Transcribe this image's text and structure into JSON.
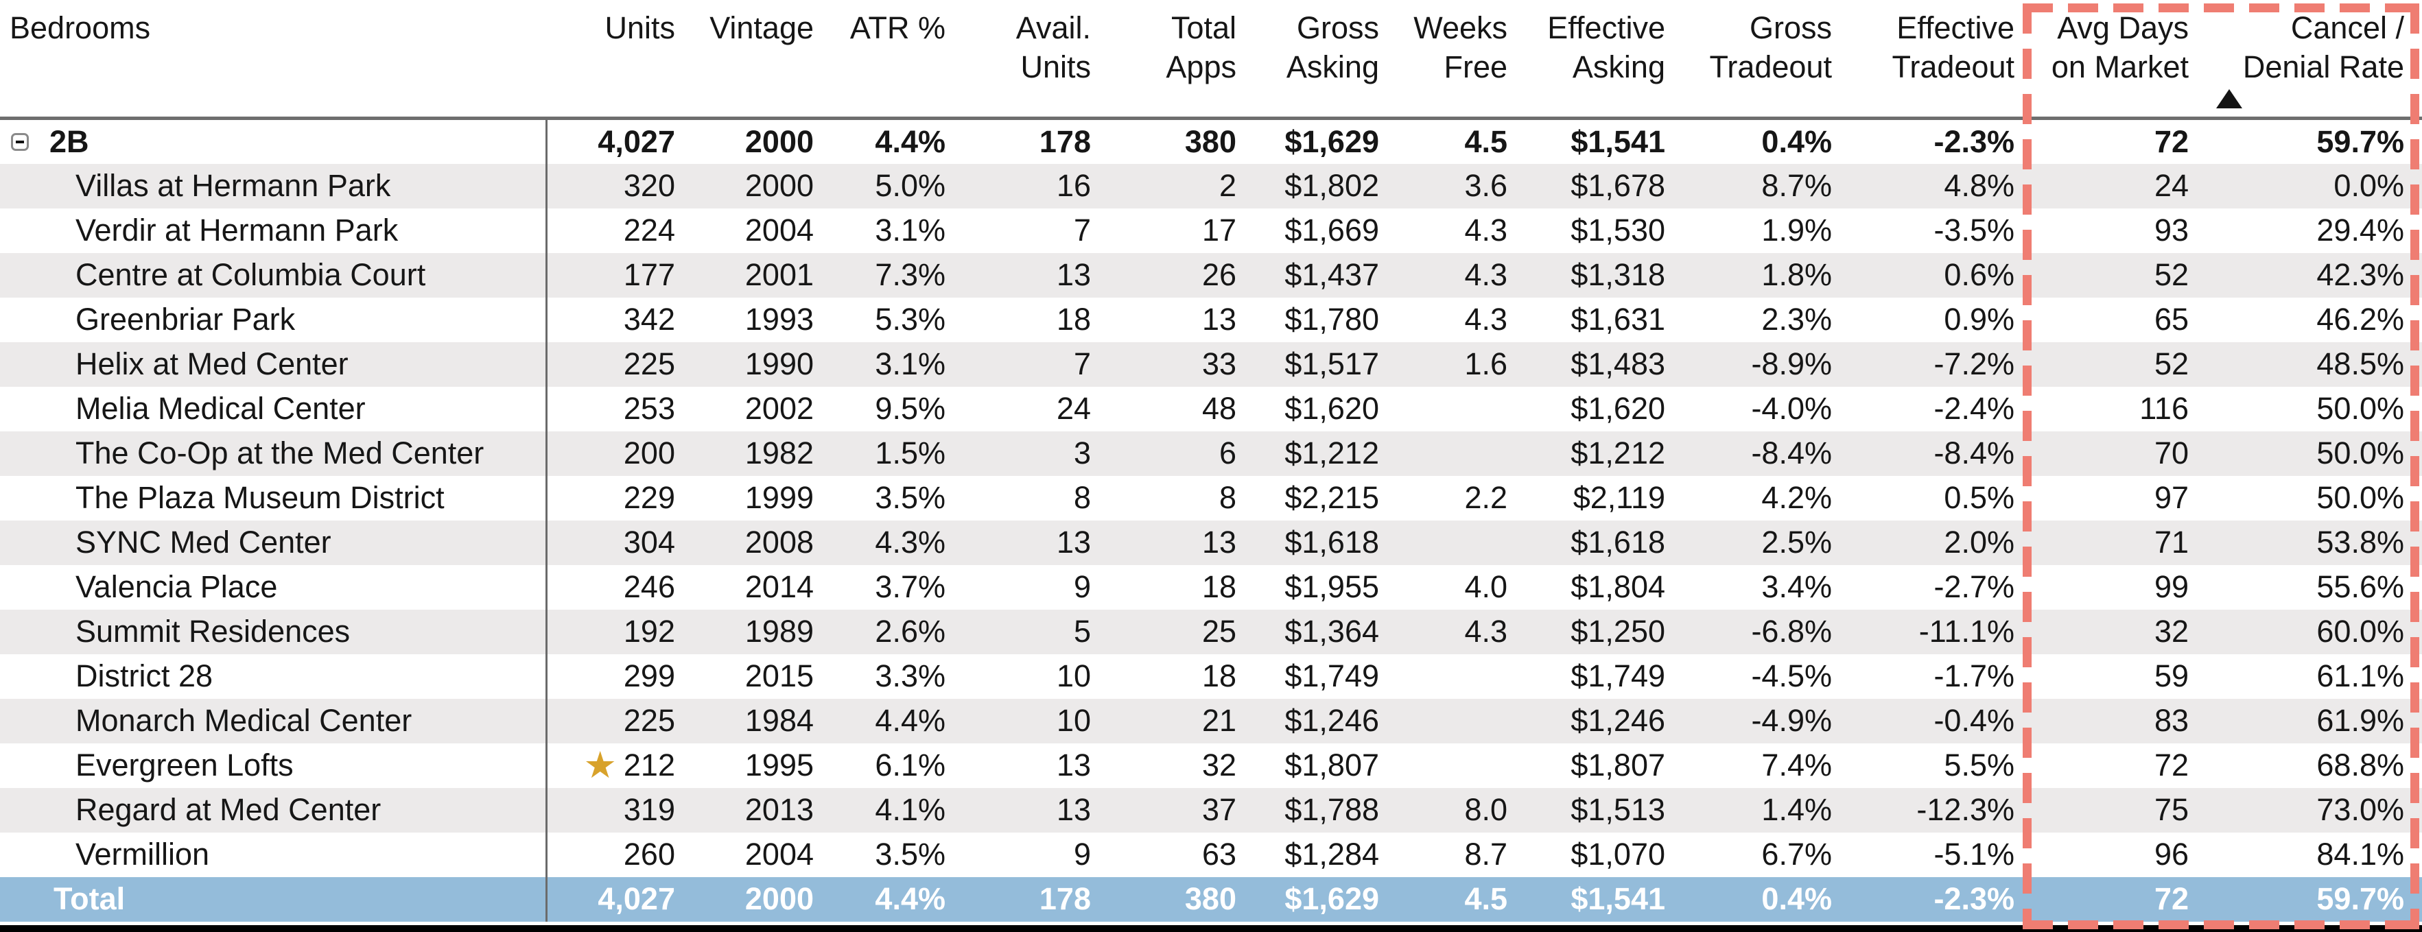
{
  "colors": {
    "row_alt": "#ECEAEA",
    "total_bg": "#94BCDA",
    "total_text": "#FFFFFF",
    "highlight_dash": "#EF7D72",
    "star": "#D8A22B",
    "header_line": "#6E6E6E",
    "divider": "#6B6B6B",
    "text": "#161616",
    "bottom_bar": "#000000"
  },
  "icons": {
    "collapse": "minus-box-icon",
    "favorite": "star-icon",
    "sort": "triangle-up-icon"
  },
  "header": {
    "sorted_column": "cancel_rate",
    "sort_direction": "ascending",
    "sort_indicator": "triangle-up",
    "columns": [
      {
        "id": "bedrooms",
        "line1": "Bedrooms",
        "line2": ""
      },
      {
        "id": "units",
        "line1": "Units",
        "line2": ""
      },
      {
        "id": "vintage",
        "line1": "Vintage",
        "line2": ""
      },
      {
        "id": "atr",
        "line1": "ATR %",
        "line2": ""
      },
      {
        "id": "avail_units",
        "line1": "Avail.",
        "line2": "Units"
      },
      {
        "id": "total_apps",
        "line1": "Total",
        "line2": "Apps"
      },
      {
        "id": "gross_asking",
        "line1": "Gross",
        "line2": "Asking"
      },
      {
        "id": "weeks_free",
        "line1": "Weeks",
        "line2": "Free"
      },
      {
        "id": "effective_asking",
        "line1": "Effective",
        "line2": "Asking"
      },
      {
        "id": "gross_tradeout",
        "line1": "Gross",
        "line2": "Tradeout"
      },
      {
        "id": "effective_tradeout",
        "line1": "Effective",
        "line2": "Tradeout"
      },
      {
        "id": "avg_days",
        "line1": "Avg Days",
        "line2": "on Market"
      },
      {
        "id": "cancel_rate",
        "line1": "Cancel /",
        "line2": "Denial Rate"
      }
    ]
  },
  "table": {
    "field_order": [
      "units",
      "vintage",
      "atr",
      "avail_units",
      "total_apps",
      "gross_asking",
      "weeks_free",
      "effective_asking",
      "gross_tradeout",
      "effective_tradeout",
      "avg_days",
      "cancel_rate"
    ],
    "group_row": {
      "label": "2B",
      "collapsed": false,
      "units": "4,027",
      "vintage": "2000",
      "atr": "4.4%",
      "avail_units": "178",
      "total_apps": "380",
      "gross_asking": "$1,629",
      "weeks_free": "4.5",
      "effective_asking": "$1,541",
      "gross_tradeout": "0.4%",
      "effective_tradeout": "-2.3%",
      "avg_days": "72",
      "cancel_rate": "59.7%"
    },
    "rows": [
      {
        "name": "Villas at Hermann Park",
        "starred": false,
        "units": "320",
        "vintage": "2000",
        "atr": "5.0%",
        "avail_units": "16",
        "total_apps": "2",
        "gross_asking": "$1,802",
        "weeks_free": "3.6",
        "effective_asking": "$1,678",
        "gross_tradeout": "8.7%",
        "effective_tradeout": "4.8%",
        "avg_days": "24",
        "cancel_rate": "0.0%"
      },
      {
        "name": "Verdir at Hermann Park",
        "starred": false,
        "units": "224",
        "vintage": "2004",
        "atr": "3.1%",
        "avail_units": "7",
        "total_apps": "17",
        "gross_asking": "$1,669",
        "weeks_free": "4.3",
        "effective_asking": "$1,530",
        "gross_tradeout": "1.9%",
        "effective_tradeout": "-3.5%",
        "avg_days": "93",
        "cancel_rate": "29.4%"
      },
      {
        "name": "Centre at Columbia Court",
        "starred": false,
        "units": "177",
        "vintage": "2001",
        "atr": "7.3%",
        "avail_units": "13",
        "total_apps": "26",
        "gross_asking": "$1,437",
        "weeks_free": "4.3",
        "effective_asking": "$1,318",
        "gross_tradeout": "1.8%",
        "effective_tradeout": "0.6%",
        "avg_days": "52",
        "cancel_rate": "42.3%"
      },
      {
        "name": "Greenbriar Park",
        "starred": false,
        "units": "342",
        "vintage": "1993",
        "atr": "5.3%",
        "avail_units": "18",
        "total_apps": "13",
        "gross_asking": "$1,780",
        "weeks_free": "4.3",
        "effective_asking": "$1,631",
        "gross_tradeout": "2.3%",
        "effective_tradeout": "0.9%",
        "avg_days": "65",
        "cancel_rate": "46.2%"
      },
      {
        "name": "Helix at Med Center",
        "starred": false,
        "units": "225",
        "vintage": "1990",
        "atr": "3.1%",
        "avail_units": "7",
        "total_apps": "33",
        "gross_asking": "$1,517",
        "weeks_free": "1.6",
        "effective_asking": "$1,483",
        "gross_tradeout": "-8.9%",
        "effective_tradeout": "-7.2%",
        "avg_days": "52",
        "cancel_rate": "48.5%"
      },
      {
        "name": "Melia Medical Center",
        "starred": false,
        "units": "253",
        "vintage": "2002",
        "atr": "9.5%",
        "avail_units": "24",
        "total_apps": "48",
        "gross_asking": "$1,620",
        "weeks_free": "",
        "effective_asking": "$1,620",
        "gross_tradeout": "-4.0%",
        "effective_tradeout": "-2.4%",
        "avg_days": "116",
        "cancel_rate": "50.0%"
      },
      {
        "name": "The Co-Op at the Med Center",
        "starred": false,
        "units": "200",
        "vintage": "1982",
        "atr": "1.5%",
        "avail_units": "3",
        "total_apps": "6",
        "gross_asking": "$1,212",
        "weeks_free": "",
        "effective_asking": "$1,212",
        "gross_tradeout": "-8.4%",
        "effective_tradeout": "-8.4%",
        "avg_days": "70",
        "cancel_rate": "50.0%"
      },
      {
        "name": "The Plaza Museum District",
        "starred": false,
        "units": "229",
        "vintage": "1999",
        "atr": "3.5%",
        "avail_units": "8",
        "total_apps": "8",
        "gross_asking": "$2,215",
        "weeks_free": "2.2",
        "effective_asking": "$2,119",
        "gross_tradeout": "4.2%",
        "effective_tradeout": "0.5%",
        "avg_days": "97",
        "cancel_rate": "50.0%"
      },
      {
        "name": "SYNC Med Center",
        "starred": false,
        "units": "304",
        "vintage": "2008",
        "atr": "4.3%",
        "avail_units": "13",
        "total_apps": "13",
        "gross_asking": "$1,618",
        "weeks_free": "",
        "effective_asking": "$1,618",
        "gross_tradeout": "2.5%",
        "effective_tradeout": "2.0%",
        "avg_days": "71",
        "cancel_rate": "53.8%"
      },
      {
        "name": "Valencia Place",
        "starred": false,
        "units": "246",
        "vintage": "2014",
        "atr": "3.7%",
        "avail_units": "9",
        "total_apps": "18",
        "gross_asking": "$1,955",
        "weeks_free": "4.0",
        "effective_asking": "$1,804",
        "gross_tradeout": "3.4%",
        "effective_tradeout": "-2.7%",
        "avg_days": "99",
        "cancel_rate": "55.6%"
      },
      {
        "name": "Summit Residences",
        "starred": false,
        "units": "192",
        "vintage": "1989",
        "atr": "2.6%",
        "avail_units": "5",
        "total_apps": "25",
        "gross_asking": "$1,364",
        "weeks_free": "4.3",
        "effective_asking": "$1,250",
        "gross_tradeout": "-6.8%",
        "effective_tradeout": "-11.1%",
        "avg_days": "32",
        "cancel_rate": "60.0%"
      },
      {
        "name": "District 28",
        "starred": false,
        "units": "299",
        "vintage": "2015",
        "atr": "3.3%",
        "avail_units": "10",
        "total_apps": "18",
        "gross_asking": "$1,749",
        "weeks_free": "",
        "effective_asking": "$1,749",
        "gross_tradeout": "-4.5%",
        "effective_tradeout": "-1.7%",
        "avg_days": "59",
        "cancel_rate": "61.1%"
      },
      {
        "name": "Monarch Medical Center",
        "starred": false,
        "units": "225",
        "vintage": "1984",
        "atr": "4.4%",
        "avail_units": "10",
        "total_apps": "21",
        "gross_asking": "$1,246",
        "weeks_free": "",
        "effective_asking": "$1,246",
        "gross_tradeout": "-4.9%",
        "effective_tradeout": "-0.4%",
        "avg_days": "83",
        "cancel_rate": "61.9%"
      },
      {
        "name": "Evergreen Lofts",
        "starred": true,
        "units": "212",
        "vintage": "1995",
        "atr": "6.1%",
        "avail_units": "13",
        "total_apps": "32",
        "gross_asking": "$1,807",
        "weeks_free": "",
        "effective_asking": "$1,807",
        "gross_tradeout": "7.4%",
        "effective_tradeout": "5.5%",
        "avg_days": "72",
        "cancel_rate": "68.8%"
      },
      {
        "name": "Regard at Med Center",
        "starred": false,
        "units": "319",
        "vintage": "2013",
        "atr": "4.1%",
        "avail_units": "13",
        "total_apps": "37",
        "gross_asking": "$1,788",
        "weeks_free": "8.0",
        "effective_asking": "$1,513",
        "gross_tradeout": "1.4%",
        "effective_tradeout": "-12.3%",
        "avg_days": "75",
        "cancel_rate": "73.0%"
      },
      {
        "name": "Vermillion",
        "starred": false,
        "units": "260",
        "vintage": "2004",
        "atr": "3.5%",
        "avail_units": "9",
        "total_apps": "63",
        "gross_asking": "$1,284",
        "weeks_free": "8.7",
        "effective_asking": "$1,070",
        "gross_tradeout": "6.7%",
        "effective_tradeout": "-5.1%",
        "avg_days": "96",
        "cancel_rate": "84.1%"
      }
    ],
    "total_row": {
      "label": "Total",
      "units": "4,027",
      "vintage": "2000",
      "atr": "4.4%",
      "avail_units": "178",
      "total_apps": "380",
      "gross_asking": "$1,629",
      "weeks_free": "4.5",
      "effective_asking": "$1,541",
      "gross_tradeout": "0.4%",
      "effective_tradeout": "-2.3%",
      "avg_days": "72",
      "cancel_rate": "59.7%"
    },
    "star_symbol": "★"
  }
}
